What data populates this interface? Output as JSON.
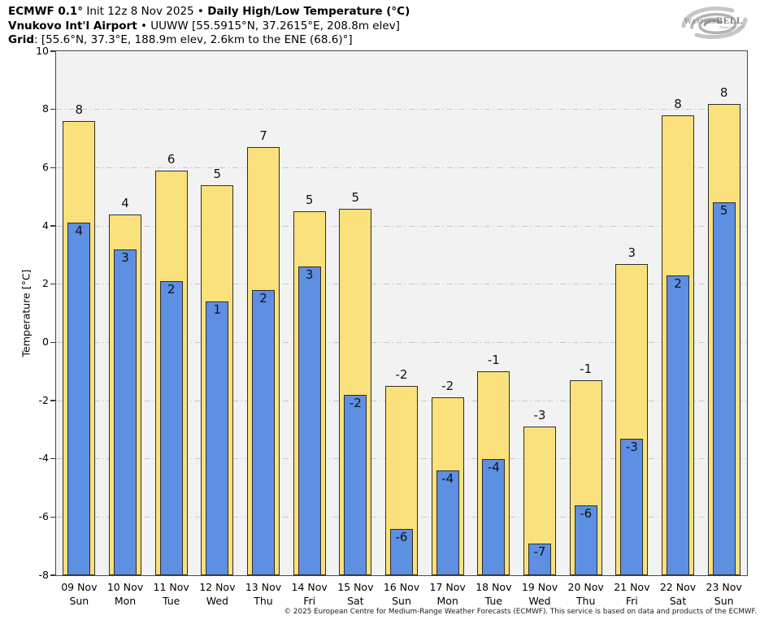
{
  "header": {
    "line1": {
      "bold1": "ECMWF 0.1°",
      "regular": " Init 12z 8 Nov 2025 • ",
      "bold2": "Daily High/Low Temperature (°C)"
    },
    "line2": {
      "bold": "Vnukovo Int'l Airport",
      "regular": " • UUWW [55.5915°N, 37.2615°E, 208.8m elev]"
    },
    "line3": {
      "bold": "Grid",
      "regular": ": [55.6°N, 37.3°E, 188.9m elev, 2.6km to the ENE (68.6)°]"
    }
  },
  "logo": {
    "word1": "Weather",
    "word2": "BELL",
    "sub": "Analytics LLC"
  },
  "chart_data": {
    "type": "bar",
    "title": "Daily High/Low Temperature (°C)",
    "xlabel": "",
    "ylabel": "Temperature [°C]",
    "ylim": [
      -8,
      10
    ],
    "yticks": [
      10,
      8,
      6,
      4,
      2,
      0,
      -2,
      -4,
      -6,
      -8
    ],
    "grid": "horizontal dash-dot at even values",
    "legend": "none",
    "bar_base": -8,
    "categories": [
      {
        "date": "09 Nov",
        "day": "Sun"
      },
      {
        "date": "10 Nov",
        "day": "Mon"
      },
      {
        "date": "11 Nov",
        "day": "Tue"
      },
      {
        "date": "12 Nov",
        "day": "Wed"
      },
      {
        "date": "13 Nov",
        "day": "Thu"
      },
      {
        "date": "14 Nov",
        "day": "Fri"
      },
      {
        "date": "15 Nov",
        "day": "Sat"
      },
      {
        "date": "16 Nov",
        "day": "Sun"
      },
      {
        "date": "17 Nov",
        "day": "Mon"
      },
      {
        "date": "18 Nov",
        "day": "Tue"
      },
      {
        "date": "19 Nov",
        "day": "Wed"
      },
      {
        "date": "20 Nov",
        "day": "Thu"
      },
      {
        "date": "21 Nov",
        "day": "Fri"
      },
      {
        "date": "22 Nov",
        "day": "Sat"
      },
      {
        "date": "23 Nov",
        "day": "Sun"
      }
    ],
    "series": [
      {
        "name": "Daily High",
        "color": "#fbe17c",
        "values": [
          7.6,
          4.4,
          5.9,
          5.4,
          6.7,
          4.5,
          4.6,
          -1.5,
          -1.9,
          -1.0,
          -2.9,
          -1.3,
          2.7,
          7.8,
          8.2
        ],
        "labels": [
          "8",
          "4",
          "6",
          "5",
          "7",
          "5",
          "5",
          "-2",
          "-2",
          "-1",
          "-3",
          "-1",
          "3",
          "8",
          "8"
        ]
      },
      {
        "name": "Daily Low",
        "color": "#5d8fe2",
        "values": [
          4.1,
          3.2,
          2.1,
          1.4,
          1.8,
          2.6,
          -1.8,
          -6.4,
          -4.4,
          -4.0,
          -6.9,
          -5.6,
          -3.3,
          2.3,
          4.8
        ],
        "labels": [
          "4",
          "3",
          "2",
          "1",
          "2",
          "3",
          "-2",
          "-6",
          "-4",
          "-4",
          "-7",
          "-6",
          "-3",
          "2",
          "5"
        ]
      }
    ]
  },
  "colors": {
    "plot_background": "#f2f2f2",
    "grid": "#c9c9c9",
    "bar_outline": "#2d2d2d",
    "frame": "#4a4a4a"
  },
  "footer": {
    "text": "© 2025 European Centre for Medium-Range Weather Forecasts (ECMWF). This service is based on data and products of the ECMWF."
  }
}
